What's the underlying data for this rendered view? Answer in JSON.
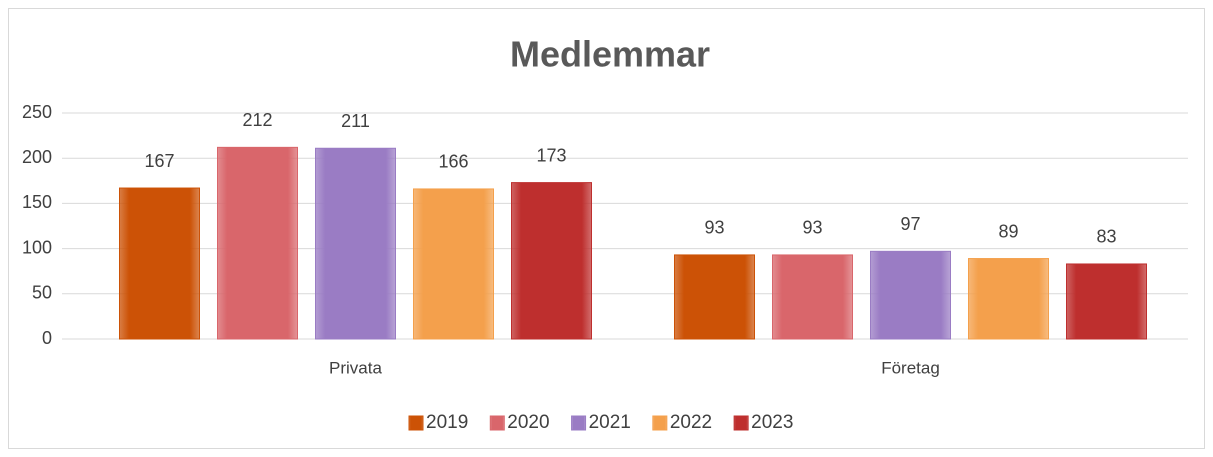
{
  "chart_data": {
    "type": "bar",
    "title": "Medlemmar",
    "categories": [
      "Privata",
      "Företag"
    ],
    "series": [
      {
        "name": "2019",
        "color": "#cc5206",
        "values": [
          167,
          93
        ]
      },
      {
        "name": "2020",
        "color": "#d9666b",
        "values": [
          212,
          93
        ]
      },
      {
        "name": "2021",
        "color": "#9a7cc4",
        "values": [
          211,
          97
        ]
      },
      {
        "name": "2022",
        "color": "#f4a04c",
        "values": [
          166,
          89
        ]
      },
      {
        "name": "2023",
        "color": "#be2f2e",
        "values": [
          173,
          83
        ]
      }
    ],
    "ylim": [
      0,
      250
    ],
    "yticks": [
      0,
      50,
      100,
      150,
      200,
      250
    ],
    "grid": true,
    "legend": "bottom"
  }
}
